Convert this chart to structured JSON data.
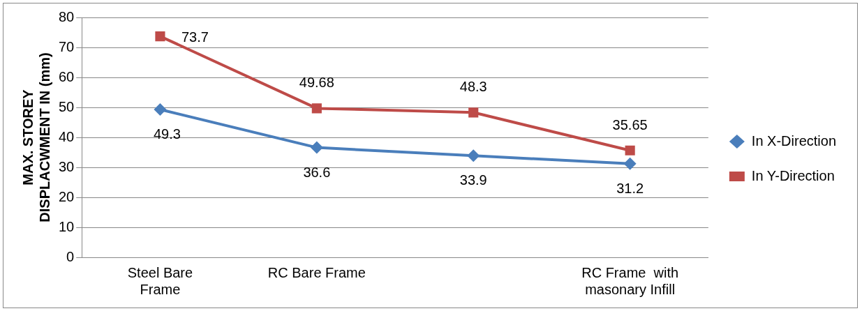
{
  "chart_data": {
    "type": "line",
    "ylabel": "MAX. STOREY DISPLACWMENT IN (mm)",
    "categories": [
      "Steel Bare Frame",
      "RC Bare Frame",
      null,
      "RC Frame  with masonary Infill"
    ],
    "series": [
      {
        "name": "In X-Direction",
        "color": "#4a7ebb",
        "marker": "diamond",
        "values": [
          49.3,
          36.6,
          33.9,
          31.2
        ]
      },
      {
        "name": "In Y-Direction",
        "color": "#be4b48",
        "marker": "square",
        "values": [
          73.7,
          49.68,
          48.3,
          35.65
        ]
      }
    ],
    "ylim": [
      0,
      80
    ],
    "yticks": [
      0,
      10,
      20,
      30,
      40,
      50,
      60,
      70,
      80
    ],
    "grid": "y",
    "legend": "right",
    "data_labels": true
  }
}
